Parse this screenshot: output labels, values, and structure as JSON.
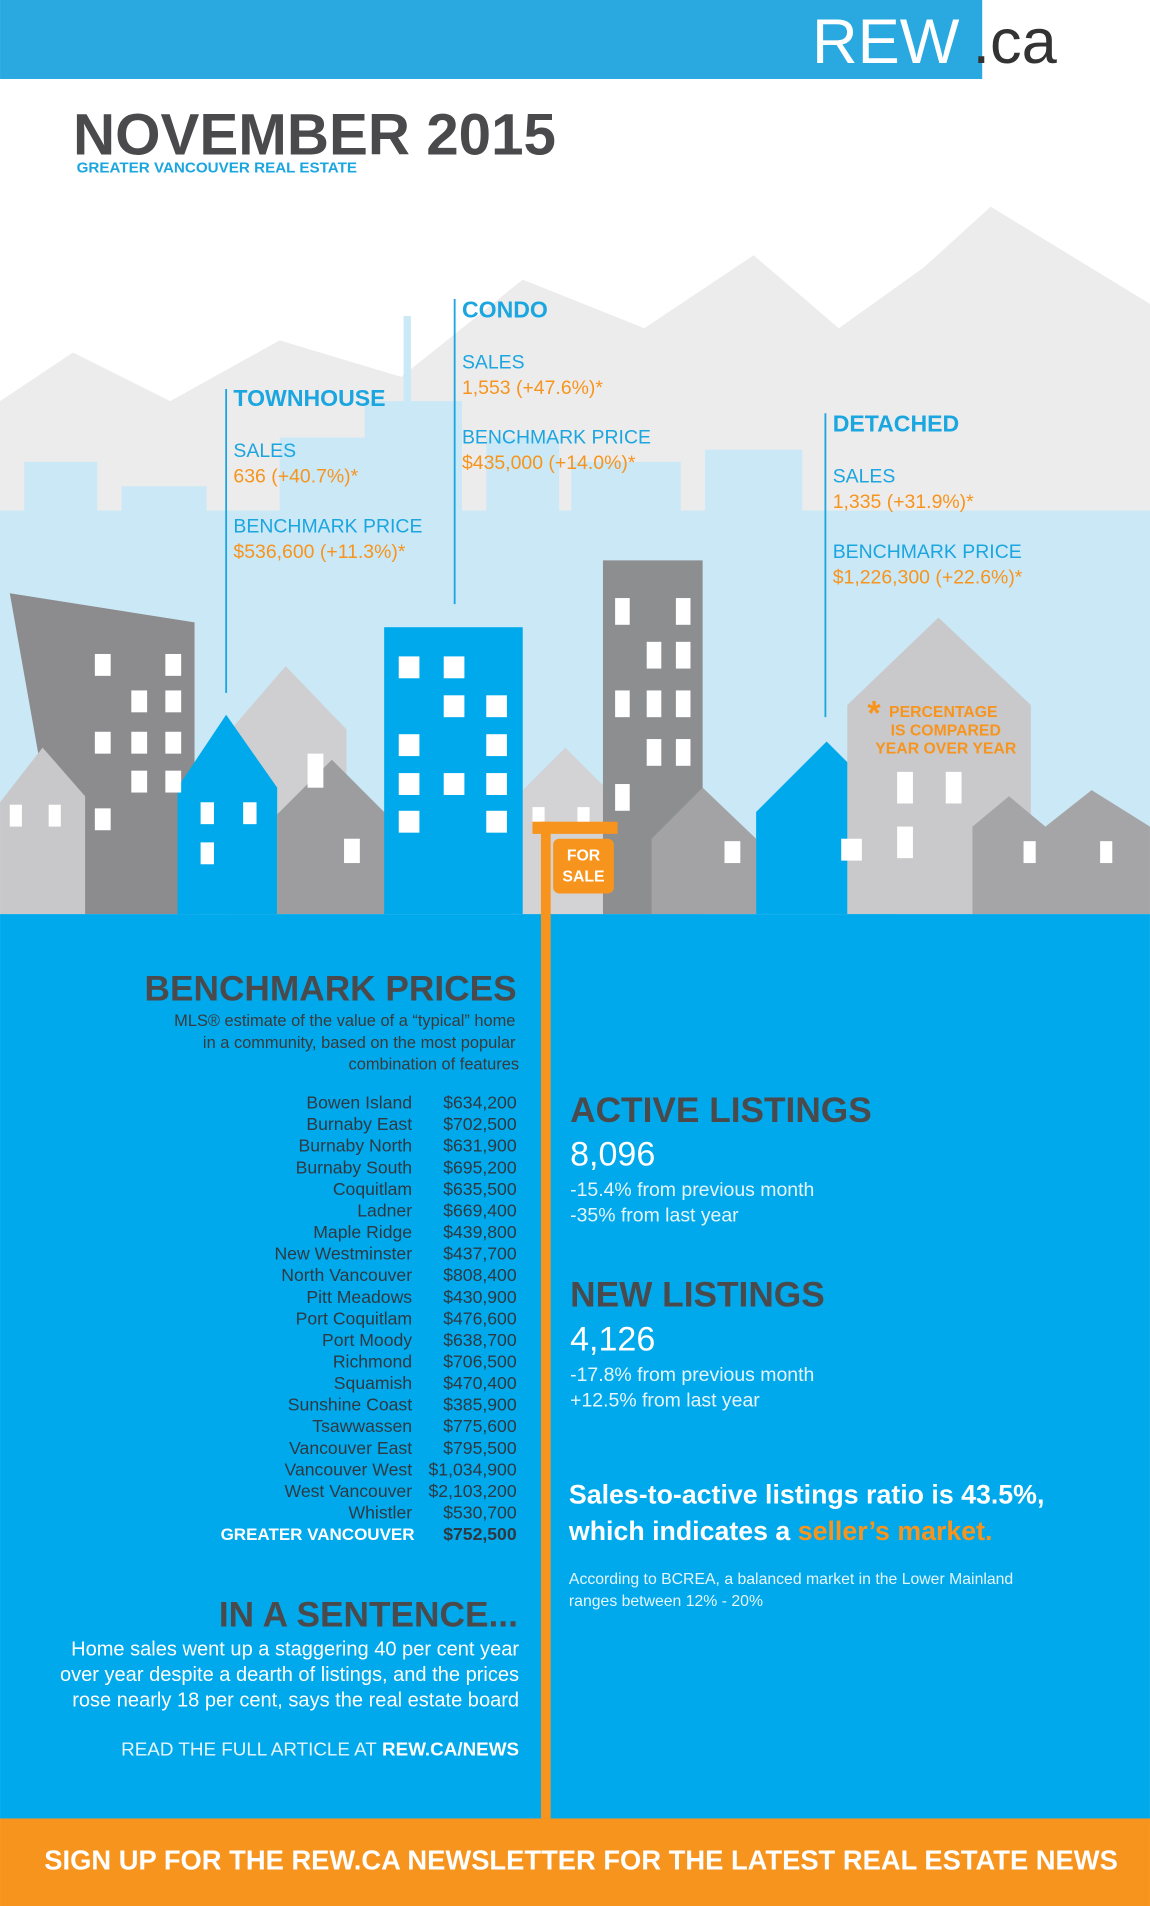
{
  "header": {
    "logo_rew": "REW",
    "logo_ca": ".ca",
    "title": "NOVEMBER 2015",
    "subtitle": "GREATER VANCOUVER REAL ESTATE"
  },
  "segments": [
    {
      "name": "TOWNHOUSE",
      "sales_label": "SALES",
      "sales": "636 (+40.7%)*",
      "price_label": "BENCHMARK PRICE",
      "price": "$536,600 (+11.3%)*"
    },
    {
      "name": "CONDO",
      "sales_label": "SALES",
      "sales": "1,553 (+47.6%)*",
      "price_label": "BENCHMARK PRICE",
      "price": "$435,000 (+14.0%)*"
    },
    {
      "name": "DETACHED",
      "sales_label": "SALES",
      "sales": "1,335 (+31.9%)*",
      "price_label": "BENCHMARK PRICE",
      "price": "$1,226,300 (+22.6%)*"
    }
  ],
  "note": {
    "mark": "*",
    "lines": [
      "PERCENTAGE",
      "IS COMPARED",
      "YEAR OVER YEAR"
    ]
  },
  "sign": [
    "FOR",
    "SALE"
  ],
  "benchmark": {
    "title": "BENCHMARK PRICES",
    "description": [
      "MLS® estimate of the value of a “typical” home",
      "in a community, based on the most popular",
      "combination of features"
    ],
    "rows": [
      [
        "Bowen Island",
        "$634,200"
      ],
      [
        "Burnaby East",
        "$702,500"
      ],
      [
        "Burnaby North",
        "$631,900"
      ],
      [
        "Burnaby South",
        "$695,200"
      ],
      [
        "Coquitlam",
        "$635,500"
      ],
      [
        "Ladner",
        "$669,400"
      ],
      [
        "Maple Ridge",
        "$439,800"
      ],
      [
        "New Westminster",
        "$437,700"
      ],
      [
        "North Vancouver",
        "$808,400"
      ],
      [
        "Pitt Meadows",
        "$430,900"
      ],
      [
        "Port Coquitlam",
        "$476,600"
      ],
      [
        "Port Moody",
        "$638,700"
      ],
      [
        "Richmond",
        "$706,500"
      ],
      [
        "Squamish",
        "$470,400"
      ],
      [
        "Sunshine Coast",
        "$385,900"
      ],
      [
        "Tsawwassen",
        "$775,600"
      ],
      [
        "Vancouver East",
        "$795,500"
      ],
      [
        "Vancouver West",
        "$1,034,900"
      ],
      [
        "West Vancouver",
        "$2,103,200"
      ],
      [
        "Whistler",
        "$530,700"
      ]
    ],
    "total": [
      "GREATER VANCOUVER",
      "$752,500"
    ]
  },
  "sentence": {
    "title": "IN A SENTENCE...",
    "lines": [
      "Home sales went up a staggering 40 per cent year",
      "over year despite a dearth of listings, and the prices",
      "rose nearly 18 per cent, says the real estate board"
    ],
    "link_prefix": "READ THE FULL ARTICLE AT",
    "link": "REW.CA/NEWS"
  },
  "active": {
    "title": "ACTIVE LISTINGS",
    "value": "8,096",
    "changes": [
      "-15.4% from previous month",
      "-35% from last year"
    ]
  },
  "new": {
    "title": "NEW LISTINGS",
    "value": "4,126",
    "changes": [
      "-17.8% from previous month",
      "+12.5% from last year"
    ]
  },
  "ratio": {
    "lines": [
      "Sales-to-active listings ratio is 43.5%,",
      "which indicates a"
    ],
    "highlight": "seller’s market.",
    "note": [
      "According to BCREA, a balanced market in the Lower Mainland",
      "ranges between 12% - 20%"
    ]
  },
  "footer": "SIGN UP FOR THE REW.CA NEWSLETTER FOR THE LATEST REAL ESTATE NEWS"
}
